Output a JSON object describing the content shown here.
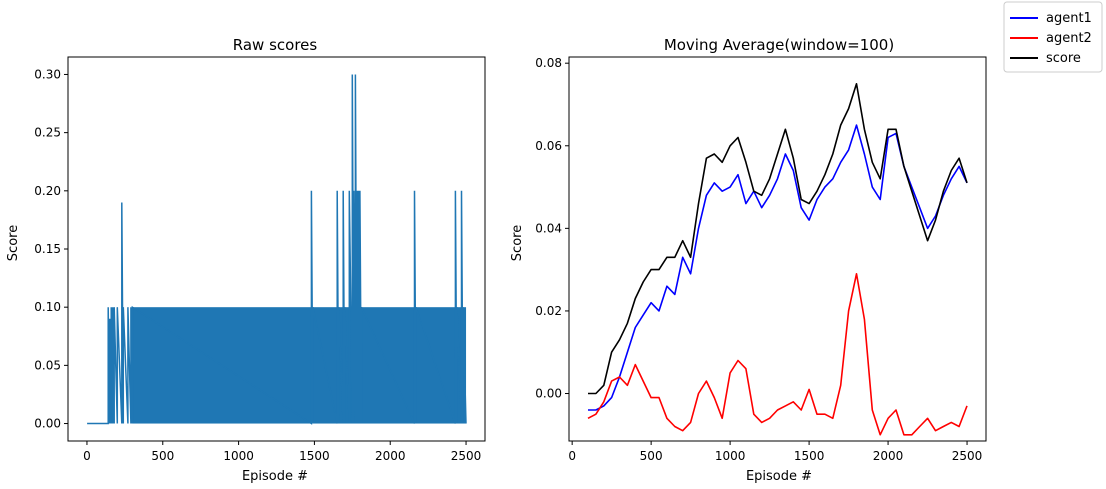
{
  "chart_data": [
    {
      "type": "line",
      "title": "Raw scores",
      "xlabel": "Episode #",
      "ylabel": "Score",
      "xlim": [
        -125,
        2625
      ],
      "ylim": [
        -0.015,
        0.315
      ],
      "xticks": [
        0,
        500,
        1000,
        1500,
        2000,
        2500
      ],
      "yticks": [
        0.0,
        0.05,
        0.1,
        0.15,
        0.2,
        0.25,
        0.3
      ],
      "ytick_labels": [
        "0.00",
        "0.05",
        "0.10",
        "0.15",
        "0.20",
        "0.25",
        "0.30"
      ],
      "color": "#1f77b4",
      "episodes": 2500,
      "grid": false,
      "series": [
        {
          "x": [
            1,
            140,
            140,
            150,
            150,
            160,
            160,
            170,
            170,
            180,
            180,
            200,
            200,
            230,
            230,
            240,
            240,
            270,
            270,
            290,
            290,
            300,
            300,
            1480,
            1480,
            1490,
            1490,
            1650,
            1650,
            1660,
            1660,
            1690,
            1690,
            1700,
            1700,
            1730,
            1730,
            1750,
            1750,
            1760,
            1760,
            1770,
            1770,
            1780,
            1780,
            1790,
            1790,
            1800,
            1800,
            1810,
            1810,
            2160,
            2160,
            2170,
            2170,
            2430,
            2430,
            2440,
            2440,
            2470,
            2470,
            2480,
            2480,
            2500
          ],
          "y": [
            0.0,
            0.0,
            0.1,
            0.0,
            0.09,
            0.0,
            0.1,
            0.0,
            0.1,
            0.0,
            0.1,
            0.0,
            0.1,
            0.0,
            0.19,
            0.0,
            0.1,
            0.0,
            0.1,
            0.0,
            0.1,
            0.0,
            0.1,
            0.0,
            0.2,
            0.0,
            0.1,
            0.0,
            0.2,
            0.0,
            0.1,
            0.0,
            0.2,
            0.0,
            0.1,
            0.0,
            0.2,
            0.0,
            0.3,
            0.0,
            0.2,
            0.0,
            0.3,
            0.0,
            0.2,
            0.0,
            0.2,
            0.0,
            0.2,
            0.0,
            0.1,
            0.0,
            0.2,
            0.0,
            0.1,
            0.0,
            0.2,
            0.0,
            0.1,
            0.0,
            0.2,
            0.0,
            0.1,
            0.0
          ]
        }
      ]
    },
    {
      "type": "line",
      "title": "Moving Average(window=100)",
      "xlabel": "Episode #",
      "ylabel": "Score",
      "xlim": [
        -20,
        2620
      ],
      "ylim": [
        -0.0115,
        0.0815
      ],
      "xticks": [
        0,
        500,
        1000,
        1500,
        2000,
        2500
      ],
      "yticks": [
        0.0,
        0.02,
        0.04,
        0.06,
        0.08
      ],
      "ytick_labels": [
        "0.00",
        "0.02",
        "0.04",
        "0.06",
        "0.08"
      ],
      "grid": false,
      "legend": "top-right",
      "series": [
        {
          "name": "agent1",
          "color": "#0000ff",
          "x": [
            100,
            150,
            200,
            250,
            300,
            350,
            400,
            450,
            500,
            550,
            600,
            650,
            700,
            750,
            800,
            850,
            900,
            950,
            1000,
            1050,
            1100,
            1150,
            1200,
            1250,
            1300,
            1350,
            1400,
            1450,
            1500,
            1550,
            1600,
            1650,
            1700,
            1750,
            1800,
            1850,
            1900,
            1950,
            2000,
            2050,
            2100,
            2150,
            2200,
            2250,
            2300,
            2350,
            2400,
            2450,
            2500
          ],
          "y": [
            -0.004,
            -0.004,
            -0.003,
            -0.001,
            0.004,
            0.01,
            0.016,
            0.019,
            0.022,
            0.02,
            0.026,
            0.024,
            0.033,
            0.029,
            0.04,
            0.048,
            0.051,
            0.049,
            0.05,
            0.053,
            0.046,
            0.049,
            0.045,
            0.048,
            0.052,
            0.058,
            0.054,
            0.045,
            0.042,
            0.047,
            0.05,
            0.052,
            0.056,
            0.059,
            0.065,
            0.058,
            0.05,
            0.047,
            0.062,
            0.063,
            0.055,
            0.05,
            0.045,
            0.04,
            0.043,
            0.048,
            0.052,
            0.055,
            0.051
          ]
        },
        {
          "name": "agent2",
          "color": "#ff0000",
          "x": [
            100,
            150,
            200,
            250,
            300,
            350,
            400,
            450,
            500,
            550,
            600,
            650,
            700,
            750,
            800,
            850,
            900,
            950,
            1000,
            1050,
            1100,
            1150,
            1200,
            1250,
            1300,
            1350,
            1400,
            1450,
            1500,
            1550,
            1600,
            1650,
            1700,
            1750,
            1800,
            1850,
            1900,
            1950,
            2000,
            2050,
            2100,
            2150,
            2200,
            2250,
            2300,
            2350,
            2400,
            2450,
            2500
          ],
          "y": [
            -0.006,
            -0.005,
            -0.002,
            0.003,
            0.004,
            0.002,
            0.007,
            0.003,
            -0.001,
            -0.001,
            -0.006,
            -0.008,
            -0.009,
            -0.007,
            0.0,
            0.003,
            -0.001,
            -0.006,
            0.005,
            0.008,
            0.006,
            -0.005,
            -0.007,
            -0.006,
            -0.004,
            -0.003,
            -0.002,
            -0.004,
            0.001,
            -0.005,
            -0.005,
            -0.006,
            0.002,
            0.02,
            0.029,
            0.018,
            -0.004,
            -0.01,
            -0.006,
            -0.004,
            -0.01,
            -0.01,
            -0.008,
            -0.006,
            -0.009,
            -0.008,
            -0.007,
            -0.008,
            -0.003
          ]
        },
        {
          "name": "score",
          "color": "#000000",
          "x": [
            100,
            150,
            200,
            250,
            300,
            350,
            400,
            450,
            500,
            550,
            600,
            650,
            700,
            750,
            800,
            850,
            900,
            950,
            1000,
            1050,
            1100,
            1150,
            1200,
            1250,
            1300,
            1350,
            1400,
            1450,
            1500,
            1550,
            1600,
            1650,
            1700,
            1750,
            1800,
            1850,
            1900,
            1950,
            2000,
            2050,
            2100,
            2150,
            2200,
            2250,
            2300,
            2350,
            2400,
            2450,
            2500
          ],
          "y": [
            0.0,
            0.0,
            0.002,
            0.01,
            0.013,
            0.017,
            0.023,
            0.027,
            0.03,
            0.03,
            0.033,
            0.033,
            0.037,
            0.033,
            0.046,
            0.057,
            0.058,
            0.056,
            0.06,
            0.062,
            0.056,
            0.049,
            0.048,
            0.052,
            0.058,
            0.064,
            0.057,
            0.047,
            0.046,
            0.049,
            0.053,
            0.058,
            0.065,
            0.069,
            0.075,
            0.064,
            0.056,
            0.052,
            0.064,
            0.064,
            0.055,
            0.049,
            0.043,
            0.037,
            0.042,
            0.049,
            0.054,
            0.057,
            0.051
          ]
        }
      ]
    }
  ]
}
